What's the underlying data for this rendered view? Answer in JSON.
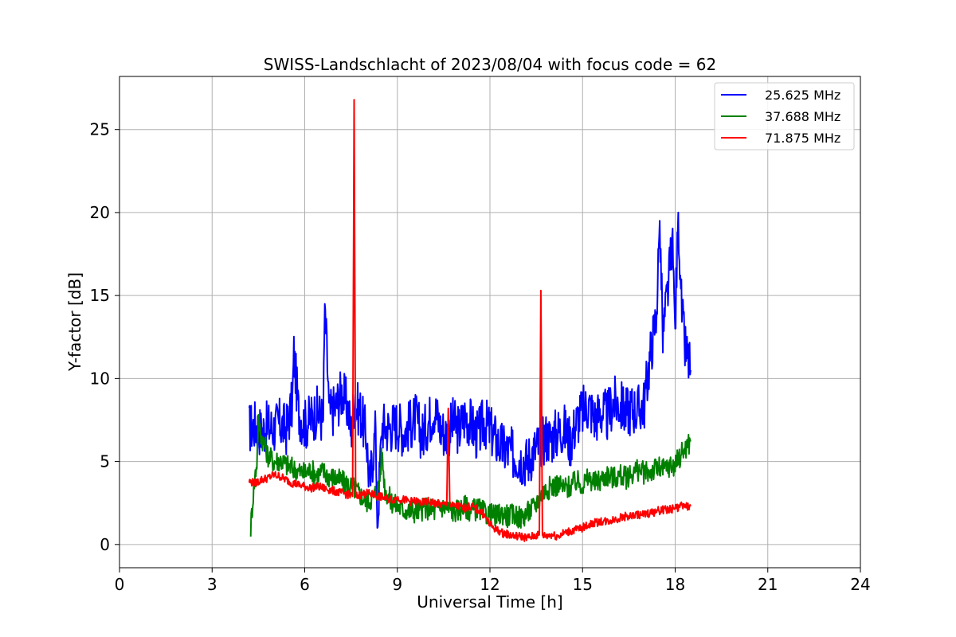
{
  "chart_data": {
    "type": "line",
    "title": "SWISS-Landschlacht of 2023/08/04 with focus code = 62",
    "xlabel": "Universal Time [h]",
    "ylabel": "Y-factor [dB]",
    "xlim": [
      0,
      24
    ],
    "ylim": [
      -1.4,
      28.2
    ],
    "xticks": [
      "0",
      "3",
      "6",
      "9",
      "12",
      "15",
      "18",
      "21",
      "24"
    ],
    "xtick_values": [
      0,
      3,
      6,
      9,
      12,
      15,
      18,
      21,
      24
    ],
    "yticks": [
      "0",
      "5",
      "10",
      "15",
      "20",
      "25"
    ],
    "ytick_values": [
      0,
      5,
      10,
      15,
      20,
      25
    ],
    "grid": true,
    "legend_position": "top-right",
    "series": [
      {
        "name": "25.625 MHz",
        "color": "#0000ff",
        "x": [
          4.2,
          4.4,
          4.6,
          4.8,
          5.0,
          5.2,
          5.4,
          5.6,
          5.65,
          5.8,
          6.0,
          6.2,
          6.4,
          6.6,
          6.65,
          6.8,
          7.0,
          7.2,
          7.4,
          7.5,
          7.6,
          7.8,
          8.0,
          8.1,
          8.3,
          8.35,
          8.5,
          8.7,
          9.0,
          9.2,
          9.4,
          9.6,
          9.8,
          10.0,
          10.2,
          10.4,
          10.6,
          10.8,
          11.0,
          11.2,
          11.4,
          11.6,
          11.8,
          12.0,
          12.2,
          12.4,
          12.6,
          12.8,
          13.0,
          13.2,
          13.4,
          13.6,
          13.8,
          14.0,
          14.2,
          14.4,
          14.6,
          14.8,
          15.0,
          15.2,
          15.4,
          15.6,
          15.8,
          16.0,
          16.2,
          16.4,
          16.6,
          16.8,
          17.0,
          17.2,
          17.4,
          17.5,
          17.6,
          17.8,
          17.9,
          18.0,
          18.1,
          18.2,
          18.3,
          18.5
        ],
        "y": [
          7.0,
          7.2,
          6.8,
          7.1,
          7.0,
          7.3,
          6.9,
          8.5,
          11.5,
          8.0,
          7.2,
          7.6,
          8.0,
          7.5,
          14.5,
          7.8,
          8.3,
          9.2,
          8.2,
          6.8,
          8.5,
          8.0,
          6.5,
          3.5,
          7.0,
          1.0,
          7.2,
          7.0,
          7.3,
          6.8,
          7.2,
          7.6,
          6.5,
          7.4,
          8.2,
          7.0,
          6.6,
          7.3,
          6.9,
          7.8,
          7.2,
          6.5,
          7.4,
          6.9,
          6.3,
          5.8,
          5.6,
          5.4,
          5.2,
          5.0,
          5.6,
          6.0,
          6.5,
          6.4,
          6.8,
          7.0,
          6.2,
          7.4,
          8.0,
          8.4,
          7.6,
          8.0,
          7.7,
          8.6,
          8.4,
          8.0,
          8.2,
          8.1,
          8.5,
          11.5,
          14.0,
          19.5,
          12.5,
          16.0,
          18.5,
          13.0,
          20.0,
          14.5,
          12.0,
          10.5
        ]
      },
      {
        "name": "37.688 MHz",
        "color": "#008000",
        "x": [
          4.25,
          4.35,
          4.45,
          4.5,
          4.6,
          4.7,
          4.8,
          5.0,
          5.2,
          5.4,
          5.6,
          5.8,
          6.0,
          6.2,
          6.4,
          6.6,
          6.8,
          7.0,
          7.2,
          7.4,
          7.6,
          7.8,
          8.0,
          8.2,
          8.4,
          8.5,
          8.6,
          8.8,
          9.0,
          9.2,
          9.4,
          9.6,
          9.8,
          10.0,
          10.2,
          10.4,
          10.6,
          10.8,
          11.0,
          11.2,
          11.4,
          11.6,
          11.8,
          12.0,
          12.2,
          12.4,
          12.6,
          12.8,
          13.0,
          13.2,
          13.4,
          13.6,
          13.8,
          14.0,
          14.2,
          14.4,
          14.6,
          14.8,
          15.0,
          15.2,
          15.4,
          15.6,
          15.8,
          16.0,
          16.2,
          16.4,
          16.6,
          16.8,
          17.0,
          17.2,
          17.4,
          17.6,
          17.8,
          18.0,
          18.2,
          18.5
        ],
        "y": [
          1.0,
          3.5,
          5.0,
          7.5,
          6.5,
          6.0,
          5.4,
          5.0,
          5.1,
          4.8,
          4.6,
          4.4,
          4.3,
          4.5,
          4.2,
          4.4,
          4.1,
          4.0,
          3.8,
          3.6,
          3.4,
          3.0,
          2.6,
          2.8,
          3.5,
          5.5,
          3.3,
          2.6,
          2.3,
          2.1,
          2.0,
          2.0,
          2.1,
          2.2,
          2.0,
          2.3,
          2.2,
          2.0,
          2.1,
          2.3,
          2.0,
          2.2,
          1.9,
          1.8,
          1.7,
          1.9,
          1.7,
          1.8,
          1.6,
          1.9,
          2.2,
          2.8,
          3.3,
          3.5,
          3.6,
          3.4,
          3.5,
          3.8,
          3.6,
          4.0,
          3.7,
          3.9,
          4.2,
          4.0,
          4.2,
          4.0,
          4.3,
          4.5,
          4.3,
          4.4,
          4.6,
          4.5,
          4.7,
          4.8,
          5.5,
          6.2
        ]
      },
      {
        "name": "71.875 MHz",
        "color": "#ff0000",
        "x": [
          4.2,
          4.4,
          4.6,
          4.8,
          5.0,
          5.2,
          5.4,
          5.6,
          5.8,
          6.0,
          6.2,
          6.4,
          6.6,
          6.8,
          7.0,
          7.2,
          7.4,
          7.55,
          7.6,
          7.65,
          7.8,
          8.0,
          8.2,
          8.4,
          8.6,
          8.8,
          9.0,
          9.2,
          9.4,
          9.6,
          9.8,
          10.0,
          10.2,
          10.4,
          10.6,
          10.65,
          10.7,
          10.8,
          11.0,
          11.2,
          11.4,
          11.6,
          11.8,
          12.0,
          12.2,
          12.4,
          12.6,
          12.8,
          13.0,
          13.2,
          13.4,
          13.6,
          13.65,
          13.7,
          13.8,
          14.0,
          14.2,
          14.4,
          14.6,
          14.8,
          15.0,
          15.2,
          15.4,
          15.6,
          15.8,
          16.0,
          16.2,
          16.4,
          16.6,
          16.8,
          17.0,
          17.2,
          17.4,
          17.6,
          17.8,
          18.0,
          18.2,
          18.5
        ],
        "y": [
          3.8,
          3.7,
          3.9,
          4.0,
          4.2,
          4.1,
          3.9,
          3.7,
          3.6,
          3.5,
          3.4,
          3.5,
          3.4,
          3.3,
          3.2,
          3.1,
          3.0,
          2.9,
          26.8,
          2.9,
          3.0,
          3.1,
          3.0,
          2.9,
          2.8,
          2.7,
          2.8,
          2.7,
          2.6,
          2.6,
          2.5,
          2.6,
          2.5,
          2.4,
          2.4,
          8.2,
          2.4,
          2.3,
          2.3,
          2.2,
          2.3,
          2.1,
          1.8,
          1.2,
          0.9,
          0.7,
          0.6,
          0.5,
          0.5,
          0.4,
          0.5,
          0.6,
          15.3,
          0.6,
          0.5,
          0.6,
          0.5,
          0.7,
          0.8,
          0.9,
          1.0,
          1.2,
          1.3,
          1.4,
          1.4,
          1.5,
          1.6,
          1.7,
          1.7,
          1.8,
          1.8,
          1.9,
          2.0,
          2.1,
          2.1,
          2.2,
          2.3,
          2.3
        ]
      }
    ]
  }
}
